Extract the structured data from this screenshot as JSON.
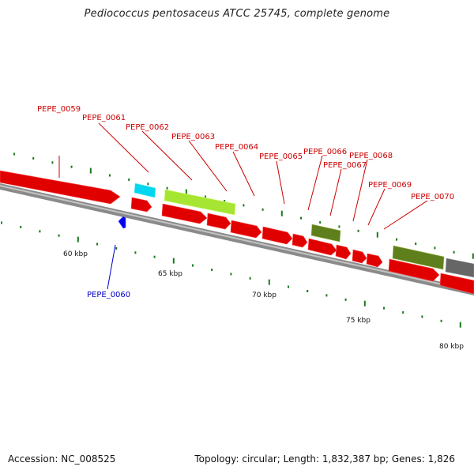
{
  "title": "Pediococcus pentosaceus ATCC 25745, complete genome",
  "footer": {
    "accession": "Accession: NC_008525",
    "summary": "Topology: circular; Length: 1,832,387 bp; Genes: 1,826"
  },
  "colors": {
    "gene_red": "#ff0000",
    "gene_cyan": "#00e5ff",
    "gene_lime": "#b4f03c",
    "gene_olive": "#6b8c23",
    "gene_gray": "#707070",
    "label_forward": "#cc0000",
    "label_reverse": "#0000cc",
    "ticks": "#1a7a1a"
  },
  "scale_labels": [
    "60 kbp",
    "65 kbp",
    "70 kbp",
    "75 kbp",
    "80 kbp"
  ],
  "gene_labels": [
    "PEPE_0059",
    "PEPE_0060",
    "PEPE_0061",
    "PEPE_0062",
    "PEPE_0063",
    "PEPE_0064",
    "PEPE_0065",
    "PEPE_0066",
    "PEPE_0067",
    "PEPE_0068",
    "PEPE_0069",
    "PEPE_0070"
  ]
}
